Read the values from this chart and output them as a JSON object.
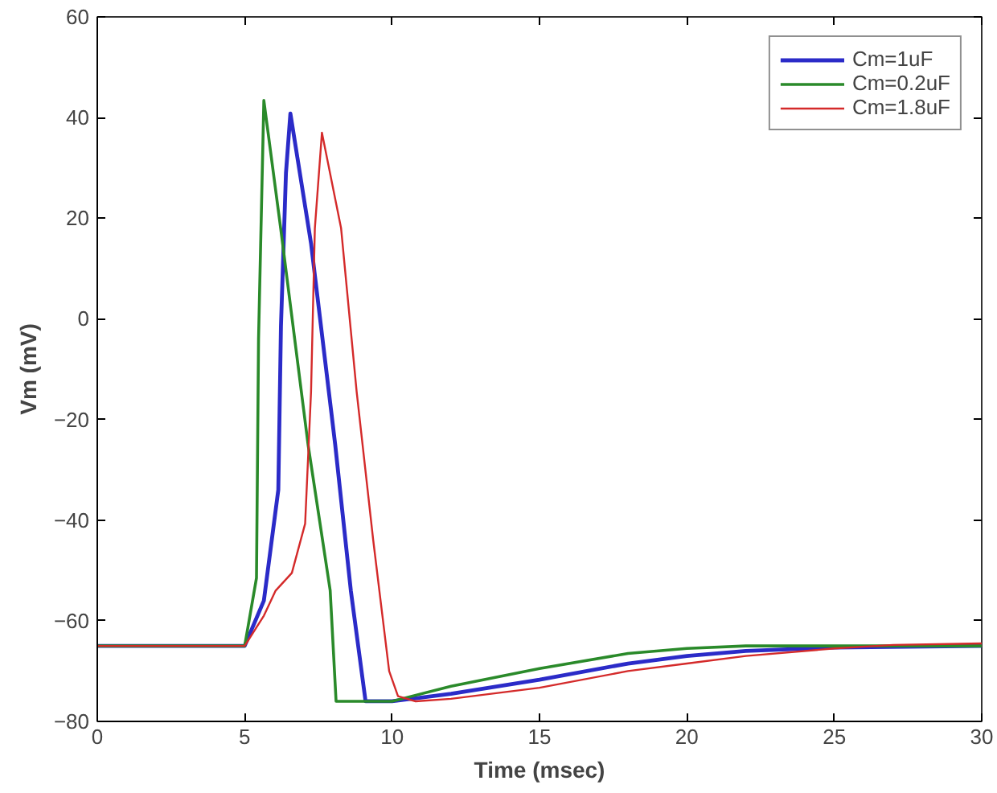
{
  "chart_data": {
    "type": "line",
    "xlabel": "Time (msec)",
    "ylabel": "Vm (mV)",
    "xlim": [
      0,
      30
    ],
    "ylim": [
      -80,
      60
    ],
    "xticks": [
      0,
      5,
      10,
      15,
      20,
      25,
      30
    ],
    "yticks": [
      -80,
      -60,
      -40,
      -20,
      0,
      20,
      40,
      60
    ],
    "grid": false,
    "legend": "top right",
    "line_style": "solid",
    "marker": "none",
    "series": [
      {
        "name": "Cm=1uF",
        "color": "#2b2bc8",
        "x": [
          0,
          5,
          5.65,
          6.14,
          6.23,
          6.4,
          6.55,
          7.25,
          8.07,
          8.6,
          9.1,
          10,
          12,
          15,
          18,
          20,
          22,
          25,
          30
        ],
        "values": [
          -65,
          -65,
          -56,
          -34,
          -1.5,
          29,
          40.8,
          15,
          -25,
          -54,
          -76,
          -76,
          -74.5,
          -71.7,
          -68.5,
          -67,
          -66,
          -65.3,
          -65
        ]
      },
      {
        "name": "Cm=0.2uF",
        "color": "#2a8a2a",
        "x": [
          0,
          5,
          5.4,
          5.47,
          5.65,
          6.22,
          7.15,
          7.9,
          8.1,
          10,
          12,
          15,
          18,
          20,
          22,
          25,
          30
        ],
        "values": [
          -65,
          -65,
          -51.5,
          -4,
          43.4,
          18,
          -25,
          -54,
          -76,
          -76,
          -73,
          -69.5,
          -66.5,
          -65.5,
          -65,
          -65,
          -65
        ]
      },
      {
        "name": "Cm=1.8uF",
        "color": "#d42a2a",
        "x": [
          0,
          5,
          5.65,
          6.05,
          6.6,
          7.05,
          7.25,
          7.38,
          7.62,
          8.27,
          8.8,
          9.36,
          9.9,
          10.2,
          10.8,
          12,
          15,
          18,
          20,
          22,
          25,
          27,
          30
        ],
        "values": [
          -65,
          -65,
          -59,
          -54,
          -50.5,
          -40.7,
          -14.6,
          18,
          37,
          18,
          -14.6,
          -44,
          -70,
          -75,
          -76,
          -75.5,
          -73.3,
          -70,
          -68.5,
          -67,
          -65.5,
          -64.8,
          -64.5
        ]
      }
    ]
  }
}
